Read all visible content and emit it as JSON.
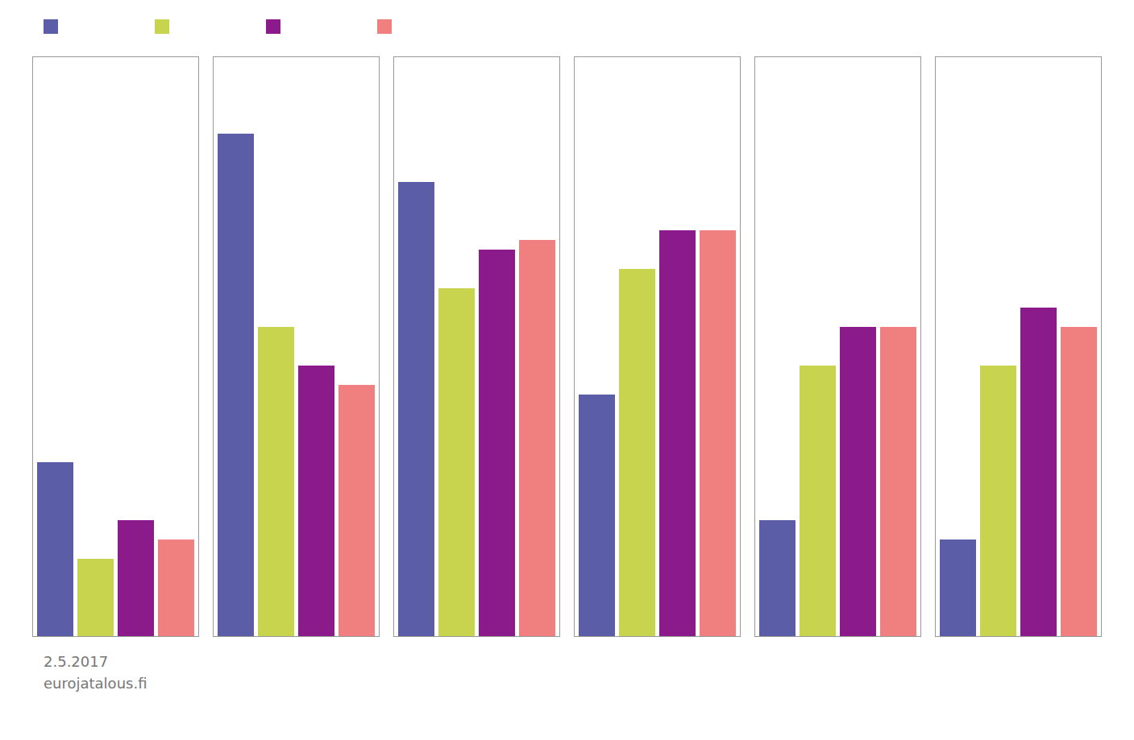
{
  "chart_data": {
    "type": "bar",
    "categories": [
      null,
      null,
      null,
      null,
      null,
      null
    ],
    "series": [
      {
        "color": "#5b5ea6",
        "values": [
          18,
          52,
          47,
          25,
          12,
          10
        ]
      },
      {
        "color": "#c8d44e",
        "values": [
          8,
          32,
          36,
          38,
          28,
          28
        ]
      },
      {
        "color": "#8b1a8b",
        "values": [
          12,
          28,
          40,
          42,
          32,
          34
        ]
      },
      {
        "color": "#f08080",
        "values": [
          10,
          26,
          41,
          42,
          32,
          32
        ]
      }
    ],
    "ylim": [
      0,
      60
    ],
    "yticks": [],
    "grid": false,
    "tick_labels": false,
    "legend": "top-left",
    "annotations": [
      "2.5.2017",
      "eurojatalous.fi"
    ]
  }
}
